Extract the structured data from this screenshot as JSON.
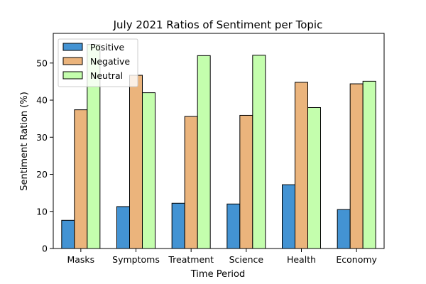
{
  "chart_data": {
    "type": "bar",
    "title": "July 2021 Ratios of Sentiment per Topic",
    "xlabel": "Time Period",
    "ylabel": "Sentiment Ration (%)",
    "categories": [
      "Masks",
      "Symptoms",
      "Treatment",
      "Science",
      "Health",
      "Economy"
    ],
    "series": [
      {
        "name": "Positive",
        "color": "#4393d3",
        "values": [
          7.6,
          11.3,
          12.2,
          12.0,
          17.2,
          10.5
        ]
      },
      {
        "name": "Negative",
        "color": "#ebb47c",
        "values": [
          37.4,
          46.7,
          35.6,
          35.9,
          44.8,
          44.4
        ]
      },
      {
        "name": "Neutral",
        "color": "#c4fead",
        "values": [
          55.0,
          42.0,
          52.0,
          52.1,
          38.0,
          45.1
        ]
      }
    ],
    "ylim": [
      0,
      58.0
    ],
    "yticks": [
      0,
      10,
      20,
      30,
      40,
      50
    ],
    "legend": "upper-left",
    "grid": false
  }
}
